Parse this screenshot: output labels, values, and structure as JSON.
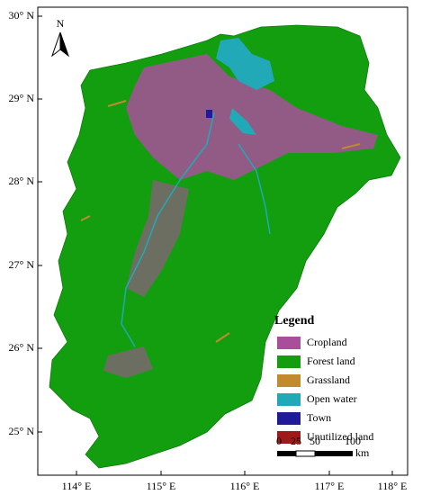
{
  "frame": {
    "lat_labels": [
      "30° N",
      "29° N",
      "28° N",
      "27° N",
      "26° N",
      "25° N"
    ],
    "lon_labels": [
      "114° E",
      "115° E",
      "116° E",
      "117° E",
      "118° E"
    ]
  },
  "north_arrow": "N",
  "legend": {
    "title": "Legend",
    "items": [
      {
        "label": "Cropland",
        "color": "#a94f9a"
      },
      {
        "label": "Forest land",
        "color": "#139e10"
      },
      {
        "label": "Grassland",
        "color": "#c28a2e"
      },
      {
        "label": "Open water",
        "color": "#21a9b8"
      },
      {
        "label": "Town",
        "color": "#1f1a9a"
      },
      {
        "label": "Unutilized land",
        "color": "#9e1a1a"
      }
    ]
  },
  "scale_bar": {
    "labels": [
      "0",
      "25",
      "50",
      "100"
    ],
    "unit": "km"
  }
}
